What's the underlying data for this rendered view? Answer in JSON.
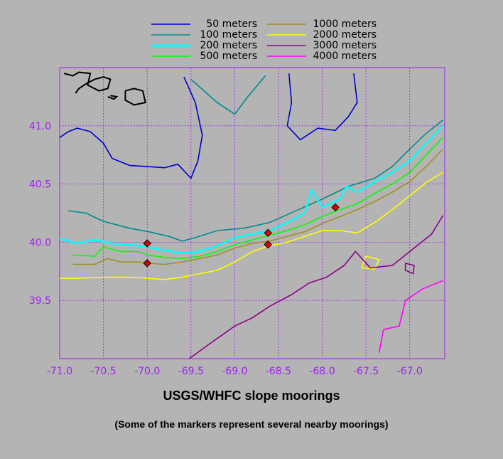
{
  "chart_data": {
    "type": "line",
    "title": "USGS/WHFC slope moorings",
    "subtitle": "(Some of the markers represent several nearby moorings)",
    "xlim": [
      -71.0,
      -66.6
    ],
    "ylim": [
      39.0,
      41.5
    ],
    "x_ticks": [
      -71.0,
      -70.5,
      -70.0,
      -69.5,
      -69.0,
      -68.5,
      -68.0,
      -67.5,
      -67.0
    ],
    "x_tick_labels": [
      "-71.0",
      "-70.5",
      "-70.0",
      "-69.5",
      "-69.0",
      "-68.5",
      "-68.0",
      "-67.5",
      "-67.0"
    ],
    "y_ticks": [
      39.5,
      40.0,
      40.5,
      41.0
    ],
    "y_tick_labels": [
      "39.5",
      "40.0",
      "40.5",
      "41.0"
    ],
    "grid": true,
    "legend_position": "top",
    "series": [
      {
        "name": "50 meters",
        "color": "#0000cc",
        "lines": [
          [
            [
              -71.0,
              40.9
            ],
            [
              -70.9,
              40.95
            ],
            [
              -70.8,
              40.98
            ],
            [
              -70.65,
              40.95
            ],
            [
              -70.5,
              40.85
            ],
            [
              -70.4,
              40.72
            ],
            [
              -70.2,
              40.66
            ],
            [
              -70.0,
              40.65
            ],
            [
              -69.8,
              40.64
            ],
            [
              -69.65,
              40.67
            ],
            [
              -69.5,
              40.55
            ],
            [
              -69.42,
              40.7
            ],
            [
              -69.37,
              40.92
            ],
            [
              -69.45,
              41.2
            ],
            [
              -69.58,
              41.42
            ]
          ],
          [
            [
              -68.38,
              41.45
            ],
            [
              -68.35,
              41.2
            ],
            [
              -68.4,
              41.0
            ],
            [
              -68.25,
              40.88
            ],
            [
              -68.05,
              40.98
            ],
            [
              -67.85,
              40.96
            ],
            [
              -67.7,
              41.08
            ],
            [
              -67.6,
              41.2
            ],
            [
              -67.64,
              41.45
            ]
          ]
        ]
      },
      {
        "name": "100 meters",
        "color": "#008b8b",
        "lines": [
          [
            [
              -70.9,
              40.27
            ],
            [
              -70.7,
              40.25
            ],
            [
              -70.5,
              40.18
            ],
            [
              -70.2,
              40.12
            ],
            [
              -69.98,
              40.09
            ],
            [
              -69.75,
              40.05
            ],
            [
              -69.6,
              40.01
            ],
            [
              -69.45,
              40.04
            ],
            [
              -69.2,
              40.1
            ],
            [
              -68.9,
              40.12
            ],
            [
              -68.6,
              40.17
            ],
            [
              -68.3,
              40.27
            ],
            [
              -68.0,
              40.37
            ],
            [
              -67.7,
              40.48
            ],
            [
              -67.4,
              40.55
            ],
            [
              -67.2,
              40.65
            ],
            [
              -67.0,
              40.8
            ],
            [
              -66.82,
              40.93
            ],
            [
              -66.62,
              41.05
            ]
          ],
          [
            [
              -69.5,
              41.4
            ],
            [
              -69.2,
              41.2
            ],
            [
              -69.0,
              41.1
            ],
            [
              -68.85,
              41.25
            ],
            [
              -68.65,
              41.43
            ]
          ]
        ]
      },
      {
        "name": "200 meters",
        "color": "#00ffff",
        "lines": [
          [
            [
              -71.0,
              40.03
            ],
            [
              -70.8,
              39.99
            ],
            [
              -70.6,
              40.02
            ],
            [
              -70.4,
              39.99
            ],
            [
              -70.2,
              39.98
            ],
            [
              -70.0,
              39.96
            ],
            [
              -69.8,
              39.93
            ],
            [
              -69.6,
              39.91
            ],
            [
              -69.4,
              39.92
            ],
            [
              -69.2,
              39.97
            ],
            [
              -69.0,
              40.04
            ],
            [
              -68.8,
              40.07
            ],
            [
              -68.6,
              40.1
            ],
            [
              -68.4,
              40.17
            ],
            [
              -68.2,
              40.25
            ],
            [
              -68.12,
              40.45
            ],
            [
              -68.0,
              40.3
            ],
            [
              -67.8,
              40.37
            ],
            [
              -67.72,
              40.48
            ],
            [
              -67.6,
              40.43
            ],
            [
              -67.4,
              40.52
            ],
            [
              -67.2,
              40.6
            ],
            [
              -67.0,
              40.7
            ],
            [
              -66.8,
              40.86
            ],
            [
              -66.62,
              41.0
            ]
          ]
        ]
      },
      {
        "name": "500 meters",
        "color": "#00ff00",
        "lines": [
          [
            [
              -70.85,
              39.89
            ],
            [
              -70.6,
              39.88
            ],
            [
              -70.5,
              39.96
            ],
            [
              -70.3,
              39.92
            ],
            [
              -70.1,
              39.92
            ],
            [
              -70.0,
              39.89
            ],
            [
              -69.8,
              39.87
            ],
            [
              -69.6,
              39.86
            ],
            [
              -69.4,
              39.88
            ],
            [
              -69.2,
              39.92
            ],
            [
              -69.0,
              39.98
            ],
            [
              -68.8,
              40.02
            ],
            [
              -68.6,
              40.06
            ],
            [
              -68.4,
              40.1
            ],
            [
              -68.2,
              40.15
            ],
            [
              -68.0,
              40.22
            ],
            [
              -67.8,
              40.28
            ],
            [
              -67.6,
              40.33
            ],
            [
              -67.4,
              40.42
            ],
            [
              -67.2,
              40.5
            ],
            [
              -67.0,
              40.6
            ],
            [
              -66.8,
              40.76
            ],
            [
              -66.62,
              40.9
            ]
          ]
        ]
      },
      {
        "name": "1000 meters",
        "color": "#a09020",
        "lines": [
          [
            [
              -70.85,
              39.81
            ],
            [
              -70.6,
              39.81
            ],
            [
              -70.45,
              39.86
            ],
            [
              -70.3,
              39.83
            ],
            [
              -70.1,
              39.83
            ],
            [
              -70.0,
              39.82
            ],
            [
              -69.8,
              39.81
            ],
            [
              -69.6,
              39.83
            ],
            [
              -69.4,
              39.86
            ],
            [
              -69.2,
              39.89
            ],
            [
              -69.0,
              39.95
            ],
            [
              -68.8,
              39.99
            ],
            [
              -68.6,
              40.01
            ],
            [
              -68.4,
              40.05
            ],
            [
              -68.2,
              40.09
            ],
            [
              -68.0,
              40.16
            ],
            [
              -67.8,
              40.22
            ],
            [
              -67.6,
              40.28
            ],
            [
              -67.4,
              40.35
            ],
            [
              -67.2,
              40.43
            ],
            [
              -67.0,
              40.52
            ],
            [
              -66.8,
              40.66
            ],
            [
              -66.62,
              40.8
            ]
          ]
        ]
      },
      {
        "name": "2000 meters",
        "color": "#ffff00",
        "lines": [
          [
            [
              -71.0,
              39.69
            ],
            [
              -70.8,
              39.69
            ],
            [
              -70.5,
              39.7
            ],
            [
              -70.2,
              39.7
            ],
            [
              -70.0,
              39.69
            ],
            [
              -69.8,
              39.68
            ],
            [
              -69.6,
              39.7
            ],
            [
              -69.4,
              39.73
            ],
            [
              -69.2,
              39.76
            ],
            [
              -69.0,
              39.83
            ],
            [
              -68.8,
              39.92
            ],
            [
              -68.6,
              39.97
            ],
            [
              -68.4,
              40.0
            ],
            [
              -68.2,
              40.05
            ],
            [
              -68.0,
              40.1
            ],
            [
              -67.8,
              40.1
            ],
            [
              -67.6,
              40.08
            ],
            [
              -67.4,
              40.17
            ],
            [
              -67.2,
              40.28
            ],
            [
              -67.0,
              40.4
            ],
            [
              -66.8,
              40.52
            ],
            [
              -66.62,
              40.6
            ]
          ],
          [
            [
              -67.5,
              39.88
            ],
            [
              -67.35,
              39.85
            ],
            [
              -67.4,
              39.77
            ],
            [
              -67.55,
              39.78
            ],
            [
              -67.5,
              39.88
            ]
          ]
        ]
      },
      {
        "name": "3000 meters",
        "color": "#8b008b",
        "lines": [
          [
            [
              -69.52,
              39.0
            ],
            [
              -69.3,
              39.12
            ],
            [
              -69.0,
              39.28
            ],
            [
              -68.8,
              39.35
            ],
            [
              -68.6,
              39.45
            ],
            [
              -68.35,
              39.55
            ],
            [
              -68.15,
              39.65
            ],
            [
              -67.95,
              39.7
            ],
            [
              -67.75,
              39.8
            ],
            [
              -67.62,
              39.92
            ],
            [
              -67.45,
              39.78
            ],
            [
              -67.2,
              39.8
            ],
            [
              -67.0,
              39.92
            ],
            [
              -66.75,
              40.07
            ],
            [
              -66.62,
              40.23
            ]
          ],
          [
            [
              -67.05,
              39.82
            ],
            [
              -66.95,
              39.8
            ],
            [
              -66.96,
              39.73
            ],
            [
              -67.05,
              39.76
            ],
            [
              -67.05,
              39.82
            ]
          ]
        ]
      },
      {
        "name": "4000 meters",
        "color": "#ff00ff",
        "lines": [
          [
            [
              -67.35,
              39.05
            ],
            [
              -67.3,
              39.25
            ],
            [
              -67.12,
              39.28
            ],
            [
              -67.05,
              39.5
            ],
            [
              -66.85,
              39.6
            ],
            [
              -66.62,
              39.67
            ]
          ]
        ]
      }
    ],
    "moorings": [
      [
        -70.0,
        39.99
      ],
      [
        -70.0,
        39.82
      ],
      [
        -68.62,
        40.08
      ],
      [
        -68.62,
        39.98
      ],
      [
        -67.85,
        40.3
      ]
    ],
    "coast": [
      [
        [
          -70.95,
          41.45
        ],
        [
          -70.85,
          41.43
        ],
        [
          -70.78,
          41.46
        ],
        [
          -70.65,
          41.45
        ],
        [
          -70.68,
          41.35
        ],
        [
          -70.55,
          41.3
        ],
        [
          -70.45,
          41.32
        ],
        [
          -70.42,
          41.4
        ],
        [
          -70.5,
          41.42
        ],
        [
          -70.6,
          41.4
        ],
        [
          -70.7,
          41.36
        ],
        [
          -70.78,
          41.32
        ],
        [
          -70.82,
          41.28
        ]
      ],
      [
        [
          -70.25,
          41.3
        ],
        [
          -70.15,
          41.32
        ],
        [
          -70.05,
          41.3
        ],
        [
          -70.02,
          41.2
        ],
        [
          -70.15,
          41.18
        ],
        [
          -70.25,
          41.22
        ],
        [
          -70.25,
          41.3
        ]
      ],
      [
        [
          -70.42,
          41.26
        ],
        [
          -70.35,
          41.25
        ],
        [
          -70.38,
          41.23
        ],
        [
          -70.45,
          41.25
        ]
      ]
    ]
  }
}
